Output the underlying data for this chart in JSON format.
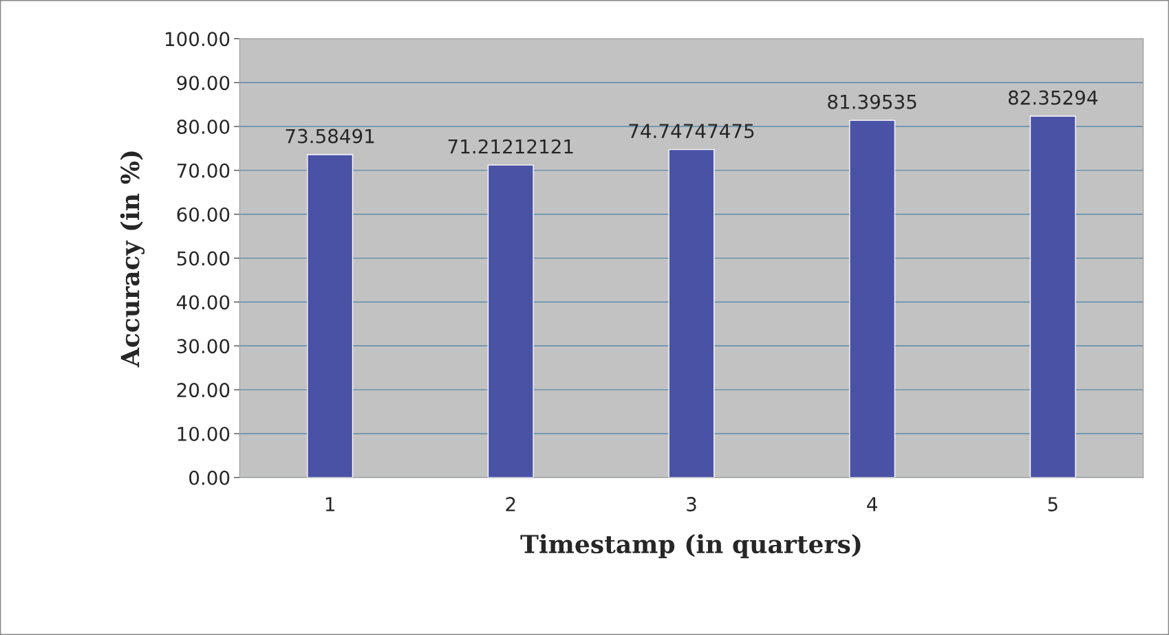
{
  "chart_data": {
    "type": "bar",
    "xlabel": "Timestamp (in quarters)",
    "ylabel": "Accuracy (in %)",
    "categories": [
      "1",
      "2",
      "3",
      "4",
      "5"
    ],
    "values": [
      73.58491,
      71.21212121,
      74.74747475,
      81.39535,
      82.35294
    ],
    "color": "#4a52a6",
    "ylim": [
      0,
      100
    ],
    "yticks": [
      {
        "value": 0,
        "label": "0.00"
      },
      {
        "value": 10,
        "label": "10.00"
      },
      {
        "value": 20,
        "label": "20.00"
      },
      {
        "value": 30,
        "label": "30.00"
      },
      {
        "value": 40,
        "label": "40.00"
      },
      {
        "value": 50,
        "label": "50.00"
      },
      {
        "value": 60,
        "label": "60.00"
      },
      {
        "value": 70,
        "label": "70.00"
      },
      {
        "value": 80,
        "label": "80.00"
      },
      {
        "value": 90,
        "label": "90.00"
      },
      {
        "value": 100,
        "label": "100.00"
      }
    ],
    "grid": "y",
    "data_labels": true
  }
}
